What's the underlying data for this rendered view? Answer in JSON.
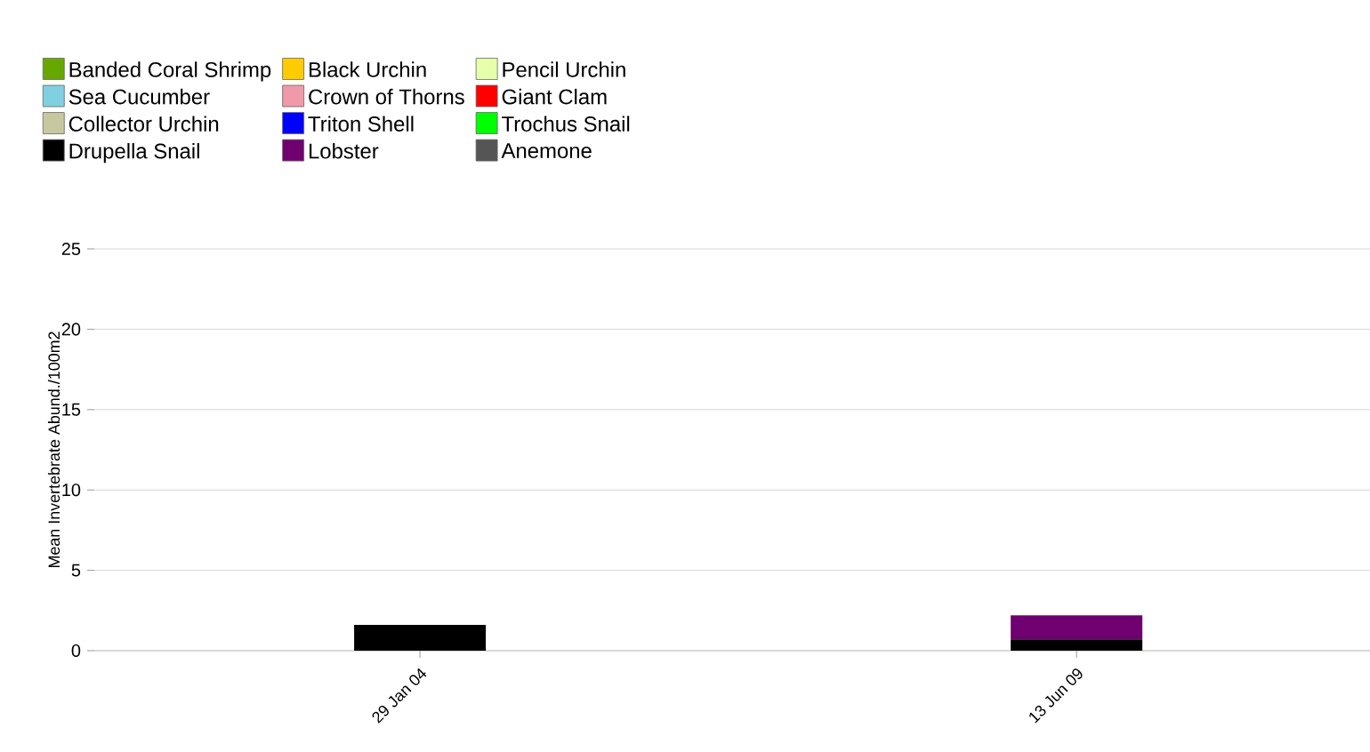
{
  "chart_data": {
    "type": "bar",
    "stacked": true,
    "ylabel": "Mean Invertebrate Abund./100m2",
    "categories": [
      "29 Jan 04",
      "13 Jun 09"
    ],
    "series": [
      {
        "name": "Banded Coral Shrimp",
        "color": "#66a800",
        "values": [
          null,
          null
        ]
      },
      {
        "name": "Black Urchin",
        "color": "#ffcc00",
        "values": [
          null,
          null
        ]
      },
      {
        "name": "Pencil Urchin",
        "color": "#e6ffaa",
        "values": [
          null,
          null
        ]
      },
      {
        "name": "Sea Cucumber",
        "color": "#80d0e0",
        "values": [
          null,
          null
        ]
      },
      {
        "name": "Crown of Thorns",
        "color": "#f099a8",
        "values": [
          null,
          null
        ]
      },
      {
        "name": "Giant Clam",
        "color": "#ff0000",
        "values": [
          null,
          null
        ]
      },
      {
        "name": "Collector Urchin",
        "color": "#c8c8a0",
        "values": [
          null,
          null
        ]
      },
      {
        "name": "Triton Shell",
        "color": "#0000ff",
        "values": [
          null,
          null
        ]
      },
      {
        "name": "Trochus Snail",
        "color": "#00ff00",
        "values": [
          null,
          null
        ]
      },
      {
        "name": "Drupella Snail",
        "color": "#000000",
        "values": [
          1.6,
          0.7
        ]
      },
      {
        "name": "Lobster",
        "color": "#700070",
        "values": [
          0,
          1.5
        ]
      },
      {
        "name": "Anemone",
        "color": "#555555",
        "values": [
          null,
          null
        ]
      }
    ],
    "ylim": [
      0,
      25
    ],
    "yticks": [
      0,
      5,
      10,
      15,
      20,
      25
    ],
    "grid": "y",
    "legend": "top left"
  }
}
